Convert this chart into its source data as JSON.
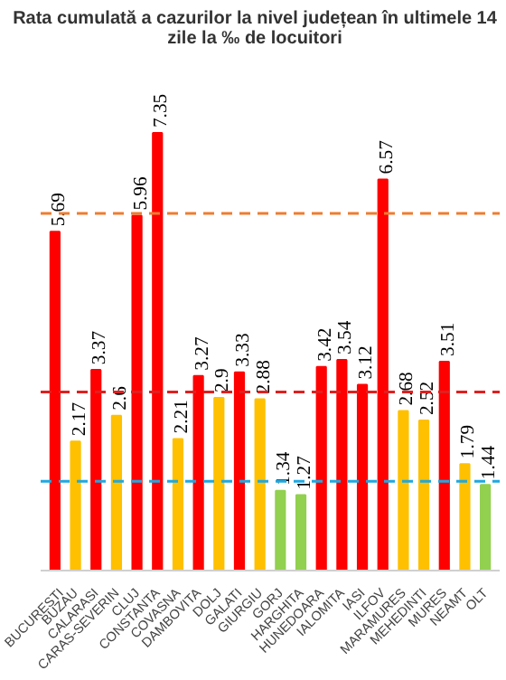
{
  "chart_data": {
    "type": "bar",
    "title": "Rata cumulată a cazurilor la nivel județean în ultimele 14 zile la ‰ de locuitori",
    "categories": [
      "BUCURESTI",
      "BUZAU",
      "CALARASI",
      "CARAS-SEVERIN",
      "CLUJ",
      "CONSTANTA",
      "COVASNA",
      "DAMBOVITA",
      "DOLJ",
      "GALATI",
      "GIURGIU",
      "GORJ",
      "HARGHITA",
      "HUNEDOARA",
      "IALOMITA",
      "IASI",
      "ILFOV",
      "MARAMURES",
      "MEHEDINTI",
      "MURES",
      "NEAMT",
      "OLT"
    ],
    "values": [
      5.69,
      2.17,
      3.37,
      2.6,
      5.96,
      7.35,
      2.21,
      3.27,
      2.9,
      3.33,
      2.88,
      1.34,
      1.27,
      3.42,
      3.54,
      3.12,
      6.57,
      2.68,
      2.52,
      3.51,
      1.79,
      1.44
    ],
    "colors": [
      "#ff0000",
      "#ffc000",
      "#ff0000",
      "#ffc000",
      "#ff0000",
      "#ff0000",
      "#ffc000",
      "#ff0000",
      "#ffc000",
      "#ff0000",
      "#ffc000",
      "#92d050",
      "#92d050",
      "#ff0000",
      "#ff0000",
      "#ff0000",
      "#ff0000",
      "#ffc000",
      "#ffc000",
      "#ff0000",
      "#ffc000",
      "#92d050"
    ],
    "tick_labels": "x",
    "grid": false,
    "data_labels": true,
    "ref_lines": [
      {
        "axis": "y",
        "value": 6,
        "color": "#ed7d31",
        "line_style": "dashed"
      },
      {
        "axis": "y",
        "value": 3,
        "color": "#e02020",
        "line_style": "dashed"
      },
      {
        "axis": "y",
        "value": 1.5,
        "color": "#1fa8e0",
        "line_style": "dashed"
      }
    ]
  }
}
